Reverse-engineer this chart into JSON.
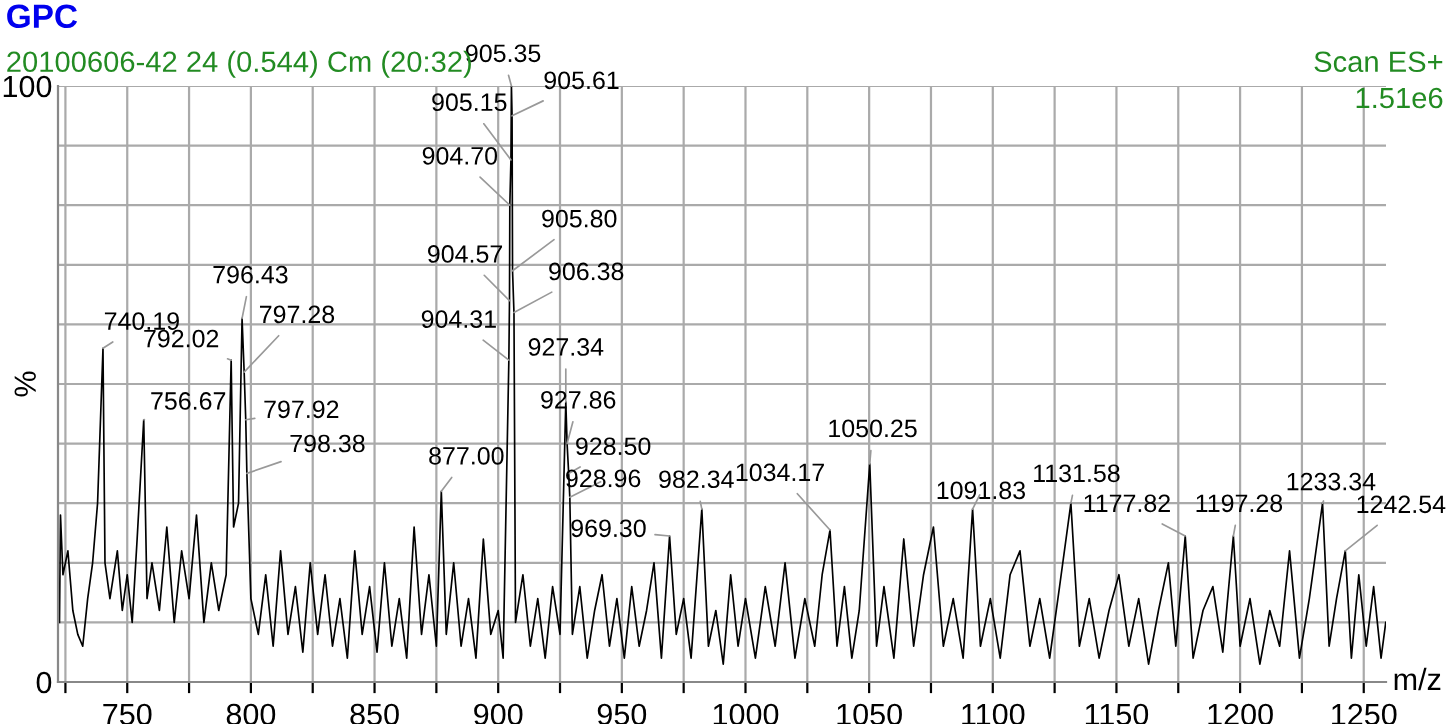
{
  "chart_data": {
    "type": "line",
    "title": "GPC",
    "subtitle": "20100606-42 24 (0.544) Cm (20:32)",
    "xlabel": "m/z",
    "ylabel": "%",
    "xlim": [
      722,
      1259
    ],
    "ylim": [
      0,
      100
    ],
    "xticks": [
      {
        "value": 725,
        "label": null
      },
      750,
      {
        "value": 775,
        "label": null
      },
      800,
      {
        "value": 825,
        "label": null
      },
      850,
      {
        "value": 875,
        "label": null
      },
      900,
      {
        "value": 925,
        "label": null
      },
      950,
      {
        "value": 975,
        "label": null
      },
      1000,
      {
        "value": 1025,
        "label": null
      },
      1050,
      {
        "value": 1075,
        "label": null
      },
      1100,
      {
        "value": 1125,
        "label": null
      },
      1150,
      {
        "value": 1175,
        "label": null
      },
      1200,
      {
        "value": 1225,
        "label": null
      },
      1250
    ],
    "yticks": [
      0,
      {
        "value": 10,
        "label": null
      },
      {
        "value": 20,
        "label": null
      },
      {
        "value": 30,
        "label": null
      },
      {
        "value": 40,
        "label": null
      },
      {
        "value": 50,
        "label": null
      },
      {
        "value": 60,
        "label": null
      },
      {
        "value": 70,
        "label": null
      },
      {
        "value": 80,
        "label": null
      },
      {
        "value": 90,
        "label": null
      },
      100
    ],
    "grid": true,
    "marker": "none",
    "line_style": "solid",
    "series": [
      {
        "color": "#000000",
        "x": [
          722.6,
          723,
          724,
          726,
          728,
          730,
          732,
          734,
          736,
          738,
          740.19,
          741,
          743,
          746,
          748,
          750,
          752,
          754,
          756.67,
          758,
          760,
          763,
          766,
          769,
          772,
          775,
          778,
          781,
          784,
          787,
          790,
          792.02,
          793,
          795,
          796.43,
          797.28,
          797.92,
          798.38,
          800,
          803,
          806,
          809,
          812,
          815,
          818,
          821,
          824,
          827,
          830,
          833,
          836,
          839,
          842,
          845,
          848,
          851,
          854,
          857,
          860,
          863,
          866,
          869,
          872,
          875,
          877.0,
          879,
          882,
          885,
          888,
          891,
          894,
          897,
          900,
          902,
          904.31,
          904.57,
          904.7,
          905.15,
          905.35,
          905.61,
          905.8,
          906.38,
          907,
          910,
          913,
          916,
          919,
          922,
          925,
          927.34,
          927.86,
          928.5,
          928.96,
          930,
          933,
          936,
          939,
          942,
          945,
          948,
          951,
          954,
          957,
          960,
          963,
          966,
          969.3,
          972,
          975,
          978,
          982.34,
          985,
          988,
          991,
          994,
          997,
          1000,
          1004,
          1008,
          1012,
          1016,
          1020,
          1024,
          1028,
          1031,
          1034.17,
          1037,
          1040,
          1043,
          1046,
          1050.25,
          1053,
          1056,
          1060,
          1064,
          1068,
          1072,
          1076,
          1080,
          1084,
          1088,
          1091.83,
          1095,
          1099,
          1103,
          1107,
          1111,
          1115,
          1119,
          1123,
          1127,
          1131.58,
          1135,
          1139,
          1143,
          1147,
          1151,
          1155,
          1159,
          1163,
          1167,
          1171,
          1174,
          1177.82,
          1181,
          1185,
          1189,
          1193,
          1197.28,
          1200,
          1204,
          1208,
          1212,
          1216,
          1220,
          1224,
          1228,
          1233.34,
          1236,
          1239,
          1242.54,
          1245,
          1248,
          1251,
          1254,
          1257,
          1258.9
        ],
        "values": [
          10,
          28,
          18,
          22,
          12,
          8,
          6,
          14,
          20,
          30,
          56,
          20,
          14,
          22,
          12,
          18,
          10,
          24,
          44,
          14,
          20,
          12,
          26,
          10,
          22,
          14,
          28,
          10,
          20,
          12,
          18,
          54,
          26,
          30,
          61,
          52,
          44,
          35,
          14,
          8,
          18,
          6,
          22,
          8,
          16,
          5,
          20,
          8,
          18,
          6,
          14,
          4,
          22,
          8,
          16,
          5,
          20,
          6,
          14,
          4,
          26,
          8,
          18,
          6,
          32,
          8,
          20,
          6,
          14,
          4,
          24,
          8,
          12,
          4,
          54,
          64,
          80,
          87.6,
          100,
          95,
          69,
          62,
          10,
          18,
          6,
          14,
          4,
          16,
          8,
          47,
          40,
          35,
          31,
          8,
          16,
          4,
          12,
          18,
          6,
          14,
          4,
          16,
          6,
          12,
          20,
          4,
          24.5,
          8,
          14,
          4,
          29,
          6,
          12,
          3,
          18,
          6,
          14,
          4,
          16,
          6,
          20,
          4,
          14,
          6,
          18,
          25.5,
          6,
          16,
          4,
          12,
          36.6,
          6,
          16,
          4,
          24,
          6,
          18,
          26,
          6,
          14,
          4,
          29,
          6,
          14,
          4,
          18,
          22,
          6,
          14,
          4,
          16,
          30,
          6,
          14,
          4,
          12,
          18,
          6,
          14,
          3,
          12,
          20,
          6,
          24.5,
          4,
          12,
          16,
          5,
          24.5,
          6,
          14,
          3,
          12,
          6,
          22,
          4,
          14,
          30,
          6,
          14,
          22,
          4,
          18,
          6,
          16,
          4,
          10
        ]
      }
    ],
    "annotations": [
      "Scan ES+",
      "1.51e6",
      {
        "text": "740.19",
        "x": 740.19,
        "y": 56
      },
      {
        "text": "756.67",
        "x": 756.67,
        "y": 44
      },
      {
        "text": "792.02",
        "x": 792.02,
        "y": 54
      },
      {
        "text": "796.43",
        "x": 796.43,
        "y": 61
      },
      {
        "text": "797.28",
        "x": 797.28,
        "y": 52
      },
      {
        "text": "797.92",
        "x": 797.92,
        "y": 44
      },
      {
        "text": "798.38",
        "x": 798.38,
        "y": 35
      },
      {
        "text": "877.00",
        "x": 877.0,
        "y": 32
      },
      {
        "text": "904.31",
        "x": 904.31,
        "y": 54
      },
      {
        "text": "904.57",
        "x": 904.57,
        "y": 64
      },
      {
        "text": "904.70",
        "x": 904.7,
        "y": 80
      },
      {
        "text": "905.15",
        "x": 905.15,
        "y": 87.6
      },
      {
        "text": "905.35",
        "x": 905.35,
        "y": 100
      },
      {
        "text": "905.61",
        "x": 905.61,
        "y": 95
      },
      {
        "text": "905.80",
        "x": 905.8,
        "y": 69
      },
      {
        "text": "906.38",
        "x": 906.38,
        "y": 62
      },
      {
        "text": "927.34",
        "x": 927.34,
        "y": 47
      },
      {
        "text": "927.86",
        "x": 927.86,
        "y": 40
      },
      {
        "text": "928.50",
        "x": 928.5,
        "y": 35
      },
      {
        "text": "928.96",
        "x": 928.96,
        "y": 31
      },
      {
        "text": "969.30",
        "x": 969.3,
        "y": 24.5
      },
      {
        "text": "982.34",
        "x": 982.34,
        "y": 29
      },
      {
        "text": "1034.17",
        "x": 1034.17,
        "y": 25.5
      },
      {
        "text": "1050.25",
        "x": 1050.25,
        "y": 36.6
      },
      {
        "text": "1091.83",
        "x": 1091.83,
        "y": 29
      },
      {
        "text": "1131.58",
        "x": 1131.58,
        "y": 30
      },
      {
        "text": "1177.82",
        "x": 1177.82,
        "y": 24.5
      },
      {
        "text": "1197.28",
        "x": 1197.28,
        "y": 24.5
      },
      {
        "text": "1233.34",
        "x": 1233.34,
        "y": 30
      },
      {
        "text": "1242.54",
        "x": 1242.54,
        "y": 22
      }
    ]
  }
}
